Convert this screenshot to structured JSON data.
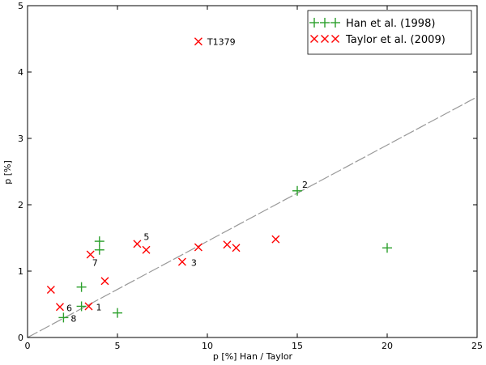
{
  "chart_data": {
    "type": "scatter",
    "xlabel": "p [%] Han  / Taylor",
    "ylabel": "p [%]",
    "xlim": [
      0,
      25
    ],
    "ylim": [
      0,
      5
    ],
    "xticks": [
      "0",
      "5",
      "10",
      "15",
      "20",
      "25"
    ],
    "yticks": [
      "0",
      "1",
      "2",
      "3",
      "4",
      "5"
    ],
    "grid": false,
    "legend_position": "top-right",
    "reference_line": {
      "slope": 0.145,
      "style": "dashed",
      "color": "#999999"
    },
    "series": [
      {
        "name": "Han et al. (1998)",
        "marker": "plus",
        "color": "#2ca02c",
        "points": [
          {
            "x": 2.0,
            "y": 0.3,
            "label": "8"
          },
          {
            "x": 3.0,
            "y": 0.47,
            "label": ""
          },
          {
            "x": 3.0,
            "y": 0.76,
            "label": ""
          },
          {
            "x": 4.0,
            "y": 1.32,
            "label": ""
          },
          {
            "x": 4.0,
            "y": 1.45,
            "label": ""
          },
          {
            "x": 5.0,
            "y": 0.37,
            "label": ""
          },
          {
            "x": 15.0,
            "y": 2.21,
            "label": "2"
          },
          {
            "x": 20.0,
            "y": 1.35,
            "label": ""
          }
        ]
      },
      {
        "name": "Taylor et al. (2009)",
        "marker": "x",
        "color": "#ff0000",
        "points": [
          {
            "x": 1.3,
            "y": 0.72,
            "label": ""
          },
          {
            "x": 1.8,
            "y": 0.46,
            "label": "6"
          },
          {
            "x": 3.4,
            "y": 0.47,
            "label": "1"
          },
          {
            "x": 3.5,
            "y": 1.25,
            "label": "7"
          },
          {
            "x": 4.3,
            "y": 0.85,
            "label": ""
          },
          {
            "x": 6.1,
            "y": 1.41,
            "label": "5"
          },
          {
            "x": 6.6,
            "y": 1.32,
            "label": ""
          },
          {
            "x": 8.6,
            "y": 1.14,
            "label": "3"
          },
          {
            "x": 9.5,
            "y": 1.36,
            "label": ""
          },
          {
            "x": 9.5,
            "y": 4.46,
            "label": "T1379"
          },
          {
            "x": 11.1,
            "y": 1.4,
            "label": ""
          },
          {
            "x": 11.6,
            "y": 1.35,
            "label": ""
          },
          {
            "x": 13.8,
            "y": 1.48,
            "label": ""
          }
        ]
      }
    ]
  }
}
